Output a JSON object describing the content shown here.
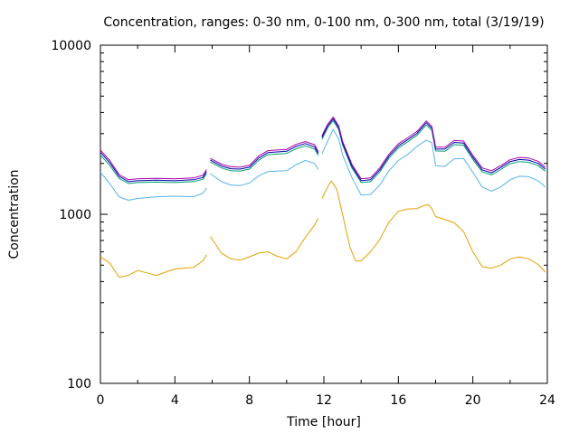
{
  "chart_data": {
    "type": "line",
    "title": "Concentration, ranges: 0-30 nm, 0-100 nm, 0-300 nm, total (3/19/19)",
    "xlabel": "Time [hour]",
    "ylabel": "Concentration",
    "xlim": [
      0,
      24
    ],
    "ylim": [
      100,
      10000
    ],
    "yscale": "log",
    "grid": false,
    "legend": "none",
    "x_ticks": [
      "0",
      "4",
      "8",
      "12",
      "16",
      "20",
      "24"
    ],
    "y_ticks": [
      "100",
      "1000",
      "10000"
    ],
    "series": [
      {
        "color": "#e69f00",
        "segments": [
          [
            [
              0,
              560
            ],
            [
              0.5,
              515
            ],
            [
              1,
              425
            ],
            [
              1.5,
              435
            ],
            [
              2,
              465
            ],
            [
              2.5,
              450
            ],
            [
              3,
              435
            ],
            [
              3.5,
              455
            ],
            [
              4,
              475
            ],
            [
              5,
              485
            ],
            [
              5.5,
              530
            ],
            [
              5.7,
              575
            ]
          ],
          [
            [
              5.9,
              740
            ],
            [
              6.5,
              590
            ],
            [
              7,
              545
            ],
            [
              7.5,
              535
            ],
            [
              8,
              560
            ],
            [
              8.5,
              590
            ],
            [
              9,
              600
            ],
            [
              9.5,
              565
            ],
            [
              10,
              545
            ],
            [
              10.5,
              600
            ],
            [
              11,
              730
            ],
            [
              11.5,
              865
            ],
            [
              11.7,
              945
            ]
          ],
          [
            [
              11.9,
              1240
            ],
            [
              12.2,
              1450
            ],
            [
              12.4,
              1575
            ],
            [
              12.7,
              1400
            ],
            [
              13,
              1000
            ],
            [
              13.4,
              640
            ],
            [
              13.7,
              530
            ],
            [
              14,
              530
            ],
            [
              14.5,
              600
            ],
            [
              15,
              710
            ],
            [
              15.5,
              900
            ],
            [
              16,
              1040
            ],
            [
              16.5,
              1075
            ],
            [
              17,
              1080
            ],
            [
              17.3,
              1120
            ],
            [
              17.6,
              1140
            ],
            [
              17.8,
              1080
            ],
            [
              18,
              970
            ],
            [
              18.5,
              930
            ],
            [
              19,
              890
            ],
            [
              19.5,
              790
            ],
            [
              20,
              600
            ],
            [
              20.5,
              490
            ],
            [
              21,
              480
            ],
            [
              21.5,
              500
            ],
            [
              22,
              545
            ],
            [
              22.5,
              560
            ],
            [
              23,
              545
            ],
            [
              23.5,
              505
            ],
            [
              23.9,
              455
            ]
          ]
        ]
      },
      {
        "color": "#56b4e9",
        "segments": [
          [
            [
              0,
              1770
            ],
            [
              0.5,
              1520
            ],
            [
              1,
              1270
            ],
            [
              1.5,
              1210
            ],
            [
              2,
              1240
            ],
            [
              3,
              1270
            ],
            [
              4,
              1280
            ],
            [
              5,
              1270
            ],
            [
              5.5,
              1330
            ],
            [
              5.7,
              1430
            ]
          ],
          [
            [
              5.9,
              1740
            ],
            [
              6.5,
              1560
            ],
            [
              7,
              1490
            ],
            [
              7.5,
              1480
            ],
            [
              8,
              1530
            ],
            [
              8.5,
              1690
            ],
            [
              9,
              1790
            ],
            [
              9.5,
              1800
            ],
            [
              10,
              1810
            ],
            [
              10.5,
              1960
            ],
            [
              11,
              2080
            ],
            [
              11.5,
              2000
            ],
            [
              11.7,
              1840
            ]
          ],
          [
            [
              11.9,
              2280
            ],
            [
              12.2,
              2700
            ],
            [
              12.5,
              3180
            ],
            [
              12.8,
              2780
            ],
            [
              13,
              2250
            ],
            [
              13.5,
              1650
            ],
            [
              14,
              1300
            ],
            [
              14.5,
              1310
            ],
            [
              15,
              1490
            ],
            [
              15.5,
              1810
            ],
            [
              16,
              2080
            ],
            [
              16.5,
              2260
            ],
            [
              17,
              2520
            ],
            [
              17.5,
              2740
            ],
            [
              17.8,
              2650
            ],
            [
              18,
              1940
            ],
            [
              18.5,
              1920
            ],
            [
              19,
              2130
            ],
            [
              19.5,
              2140
            ],
            [
              20,
              1770
            ],
            [
              20.5,
              1450
            ],
            [
              21,
              1370
            ],
            [
              21.5,
              1450
            ],
            [
              22,
              1600
            ],
            [
              22.5,
              1680
            ],
            [
              23,
              1670
            ],
            [
              23.5,
              1580
            ],
            [
              23.9,
              1450
            ]
          ]
        ]
      },
      {
        "color": "#009e73",
        "segments": [
          [
            [
              0,
              2240
            ],
            [
              0.5,
              1950
            ],
            [
              1,
              1630
            ],
            [
              1.5,
              1520
            ],
            [
              2,
              1540
            ],
            [
              3,
              1550
            ],
            [
              4,
              1540
            ],
            [
              5,
              1560
            ],
            [
              5.5,
              1610
            ],
            [
              5.7,
              1740
            ]
          ],
          [
            [
              5.9,
              2040
            ],
            [
              6.5,
              1880
            ],
            [
              7,
              1810
            ],
            [
              7.5,
              1800
            ],
            [
              8,
              1850
            ],
            [
              8.5,
              2090
            ],
            [
              9,
              2250
            ],
            [
              9.5,
              2270
            ],
            [
              10,
              2290
            ],
            [
              10.5,
              2440
            ],
            [
              11,
              2540
            ],
            [
              11.5,
              2440
            ],
            [
              11.7,
              2230
            ]
          ],
          [
            [
              11.9,
              2780
            ],
            [
              12.2,
              3240
            ],
            [
              12.5,
              3580
            ],
            [
              12.8,
              3160
            ],
            [
              13,
              2580
            ],
            [
              13.5,
              1880
            ],
            [
              14,
              1540
            ],
            [
              14.5,
              1560
            ],
            [
              15,
              1780
            ],
            [
              15.5,
              2150
            ],
            [
              16,
              2470
            ],
            [
              16.5,
              2680
            ],
            [
              17,
              2930
            ],
            [
              17.5,
              3380
            ],
            [
              17.8,
              3130
            ],
            [
              18,
              2370
            ],
            [
              18.5,
              2360
            ],
            [
              19,
              2580
            ],
            [
              19.5,
              2560
            ],
            [
              20,
              2110
            ],
            [
              20.5,
              1780
            ],
            [
              21,
              1710
            ],
            [
              21.5,
              1840
            ],
            [
              22,
              1990
            ],
            [
              22.5,
              2050
            ],
            [
              23,
              2030
            ],
            [
              23.5,
              1940
            ],
            [
              23.9,
              1800
            ]
          ]
        ]
      },
      {
        "color": "#0000aa",
        "segments": [
          [
            [
              0,
              2330
            ],
            [
              0.5,
              2020
            ],
            [
              1,
              1680
            ],
            [
              1.5,
              1560
            ],
            [
              2,
              1580
            ],
            [
              3,
              1590
            ],
            [
              4,
              1580
            ],
            [
              5,
              1600
            ],
            [
              5.5,
              1650
            ],
            [
              5.7,
              1790
            ]
          ],
          [
            [
              5.9,
              2090
            ],
            [
              6.5,
              1930
            ],
            [
              7,
              1860
            ],
            [
              7.5,
              1850
            ],
            [
              8,
              1900
            ],
            [
              8.5,
              2150
            ],
            [
              9,
              2320
            ],
            [
              9.5,
              2340
            ],
            [
              10,
              2360
            ],
            [
              10.5,
              2520
            ],
            [
              11,
              2620
            ],
            [
              11.5,
              2510
            ],
            [
              11.7,
              2290
            ]
          ],
          [
            [
              11.9,
              2850
            ],
            [
              12.2,
              3320
            ],
            [
              12.5,
              3670
            ],
            [
              12.8,
              3240
            ],
            [
              13,
              2640
            ],
            [
              13.5,
              1930
            ],
            [
              14,
              1580
            ],
            [
              14.5,
              1600
            ],
            [
              15,
              1830
            ],
            [
              15.5,
              2210
            ],
            [
              16,
              2540
            ],
            [
              16.5,
              2760
            ],
            [
              17,
              3010
            ],
            [
              17.5,
              3480
            ],
            [
              17.8,
              3220
            ],
            [
              18,
              2430
            ],
            [
              18.5,
              2430
            ],
            [
              19,
              2660
            ],
            [
              19.5,
              2640
            ],
            [
              20,
              2170
            ],
            [
              20.5,
              1830
            ],
            [
              21,
              1760
            ],
            [
              21.5,
              1890
            ],
            [
              22,
              2050
            ],
            [
              22.5,
              2110
            ],
            [
              23,
              2090
            ],
            [
              23.5,
              2000
            ],
            [
              23.9,
              1850
            ]
          ]
        ]
      },
      {
        "color": "#aa00aa",
        "segments": [
          [
            [
              0,
              2400
            ],
            [
              0.5,
              2080
            ],
            [
              1,
              1720
            ],
            [
              1.5,
              1600
            ],
            [
              2,
              1620
            ],
            [
              3,
              1630
            ],
            [
              4,
              1620
            ],
            [
              5,
              1640
            ],
            [
              5.5,
              1700
            ],
            [
              5.7,
              1840
            ]
          ],
          [
            [
              5.9,
              2140
            ],
            [
              6.5,
              1980
            ],
            [
              7,
              1910
            ],
            [
              7.5,
              1900
            ],
            [
              8,
              1950
            ],
            [
              8.5,
              2210
            ],
            [
              9,
              2380
            ],
            [
              9.5,
              2400
            ],
            [
              10,
              2420
            ],
            [
              10.5,
              2590
            ],
            [
              11,
              2690
            ],
            [
              11.5,
              2580
            ],
            [
              11.7,
              2350
            ]
          ],
          [
            [
              11.9,
              2920
            ],
            [
              12.2,
              3400
            ],
            [
              12.5,
              3760
            ],
            [
              12.8,
              3320
            ],
            [
              13,
              2710
            ],
            [
              13.5,
              1980
            ],
            [
              14,
              1620
            ],
            [
              14.5,
              1640
            ],
            [
              15,
              1880
            ],
            [
              15.5,
              2270
            ],
            [
              16,
              2610
            ],
            [
              16.5,
              2830
            ],
            [
              17,
              3090
            ],
            [
              17.5,
              3570
            ],
            [
              17.8,
              3300
            ],
            [
              18,
              2500
            ],
            [
              18.5,
              2490
            ],
            [
              19,
              2730
            ],
            [
              19.5,
              2710
            ],
            [
              20,
              2230
            ],
            [
              20.5,
              1880
            ],
            [
              21,
              1810
            ],
            [
              21.5,
              1940
            ],
            [
              22,
              2100
            ],
            [
              22.5,
              2170
            ],
            [
              23,
              2150
            ],
            [
              23.5,
              2060
            ],
            [
              23.9,
              1900
            ]
          ]
        ]
      }
    ]
  }
}
